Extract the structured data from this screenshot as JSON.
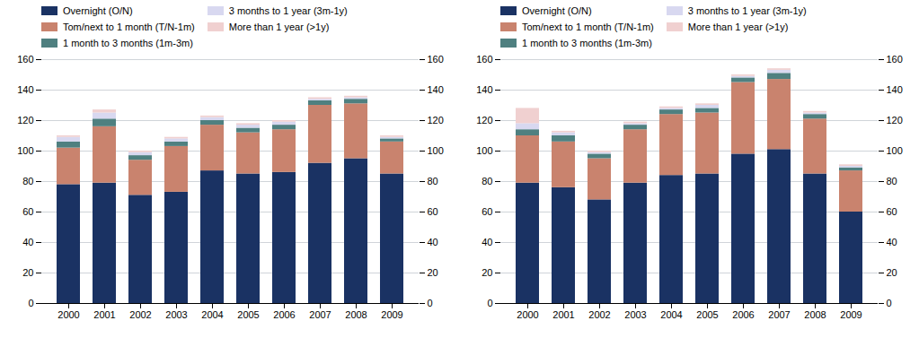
{
  "chart_data": [
    {
      "type": "bar",
      "stacked": true,
      "grid": true,
      "legend": "top",
      "categories": [
        "2000",
        "2001",
        "2002",
        "2003",
        "2004",
        "2005",
        "2006",
        "2007",
        "2008",
        "2009"
      ],
      "series": [
        {
          "name": "Overnight (O/N)",
          "color": "#1a3263",
          "values": [
            78,
            79,
            71,
            73,
            87,
            85,
            86,
            92,
            95,
            85
          ]
        },
        {
          "name": "Tom/next to 1 month (T/N-1m)",
          "color": "#c9836e",
          "values": [
            24,
            37,
            23,
            30,
            30,
            27,
            28,
            38,
            36,
            21
          ]
        },
        {
          "name": "1 month to 3 months (1m-3m)",
          "color": "#4f8080",
          "values": [
            4,
            5,
            3,
            3,
            3,
            3,
            3,
            3,
            3,
            2
          ]
        },
        {
          "name": "3 months to 1 year (3m-1y)",
          "color": "#d8d8f0",
          "values": [
            3,
            4,
            2,
            2,
            2,
            2,
            2,
            1,
            1,
            1
          ]
        },
        {
          "name": "More than 1 year (>1y)",
          "color": "#f0d0d0",
          "values": [
            1,
            2,
            1,
            1,
            1,
            1,
            1,
            1,
            1,
            1
          ]
        }
      ],
      "ylim": [
        0,
        160
      ],
      "yticks": [
        0,
        20,
        40,
        60,
        80,
        100,
        120,
        140,
        160
      ],
      "y2lim": [
        0,
        160
      ],
      "y2ticks": [
        0,
        20,
        40,
        60,
        80,
        100,
        120,
        140,
        160
      ]
    },
    {
      "type": "bar",
      "stacked": true,
      "grid": true,
      "legend": "top",
      "categories": [
        "2000",
        "2001",
        "2002",
        "2003",
        "2004",
        "2005",
        "2006",
        "2007",
        "2008",
        "2009"
      ],
      "series": [
        {
          "name": "Overnight (O/N)",
          "color": "#1a3263",
          "values": [
            79,
            76,
            68,
            79,
            84,
            85,
            98,
            101,
            85,
            60
          ]
        },
        {
          "name": "Tom/next to 1 month (T/N-1m)",
          "color": "#c9836e",
          "values": [
            31,
            30,
            27,
            35,
            40,
            40,
            47,
            46,
            36,
            27
          ]
        },
        {
          "name": "1 month to 3 months (1m-3m)",
          "color": "#4f8080",
          "values": [
            4,
            4,
            3,
            3,
            3,
            3,
            3,
            4,
            3,
            2
          ]
        },
        {
          "name": "3 months to 1 year (3m-1y)",
          "color": "#d8d8f0",
          "values": [
            4,
            2,
            1,
            1,
            1,
            2,
            1,
            2,
            1,
            1
          ]
        },
        {
          "name": "More than 1 year (>1y)",
          "color": "#f0d0d0",
          "values": [
            10,
            1,
            1,
            1,
            1,
            1,
            1,
            1,
            1,
            1
          ]
        }
      ],
      "ylim": [
        0,
        160
      ],
      "yticks": [
        0,
        20,
        40,
        60,
        80,
        100,
        120,
        140,
        160
      ],
      "y2lim": [
        0,
        160
      ],
      "y2ticks": [
        0,
        20,
        40,
        60,
        80,
        100,
        120,
        140,
        160
      ]
    }
  ]
}
